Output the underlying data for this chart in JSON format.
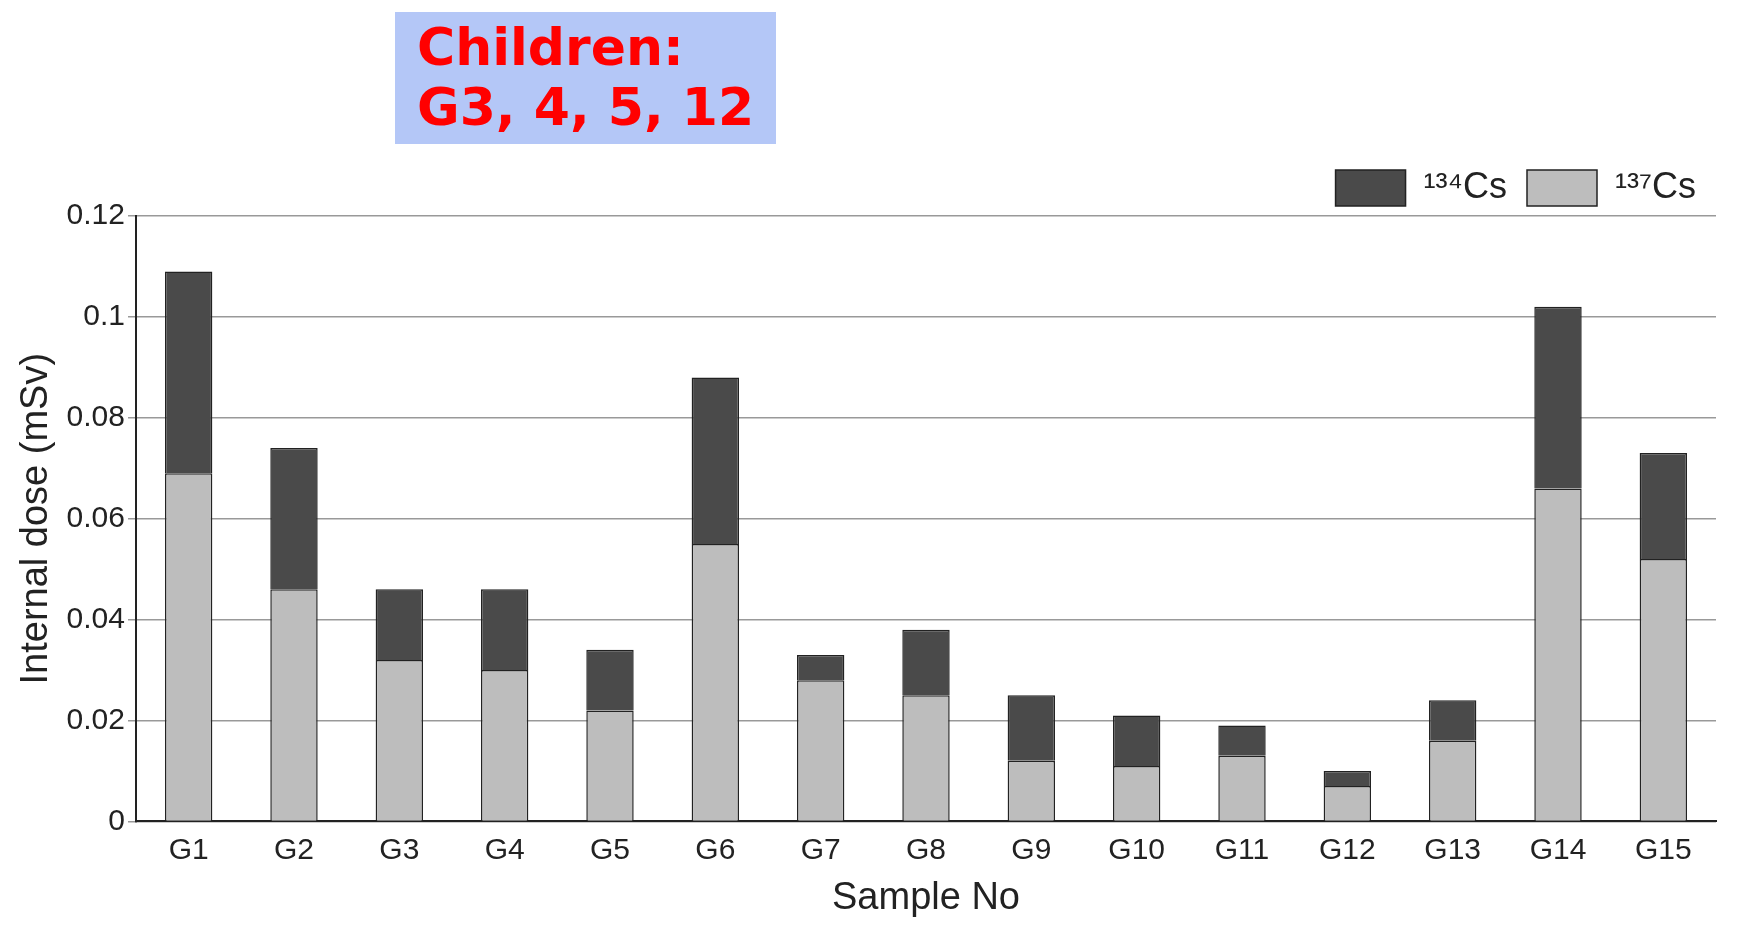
{
  "chart_data": {
    "type": "bar",
    "stacked": true,
    "xlabel": "Sample No",
    "ylabel": "Internal dose (mSv)",
    "categories": [
      "G1",
      "G2",
      "G3",
      "G4",
      "G5",
      "G6",
      "G7",
      "G8",
      "G9",
      "G10",
      "G11",
      "G12",
      "G13",
      "G14",
      "G15"
    ],
    "series": [
      {
        "name": "¹³⁷Cs",
        "color": "#bdbdbd",
        "values": [
          0.069,
          0.046,
          0.032,
          0.03,
          0.022,
          0.055,
          0.028,
          0.025,
          0.012,
          0.011,
          0.013,
          0.007,
          0.016,
          0.066,
          0.052
        ]
      },
      {
        "name": "¹³⁴Cs",
        "color": "#4a4a4a",
        "values": [
          0.04,
          0.028,
          0.014,
          0.016,
          0.012,
          0.033,
          0.005,
          0.013,
          0.013,
          0.01,
          0.006,
          0.003,
          0.008,
          0.036,
          0.021
        ]
      }
    ],
    "ylim": [
      0,
      0.12
    ],
    "yticks": [
      0,
      0.02,
      0.04,
      0.06,
      0.08,
      0.1,
      0.12
    ],
    "grid": "y",
    "legend": "top right",
    "annotations": [
      "Children:\nG3, 4,  5, 12"
    ]
  }
}
